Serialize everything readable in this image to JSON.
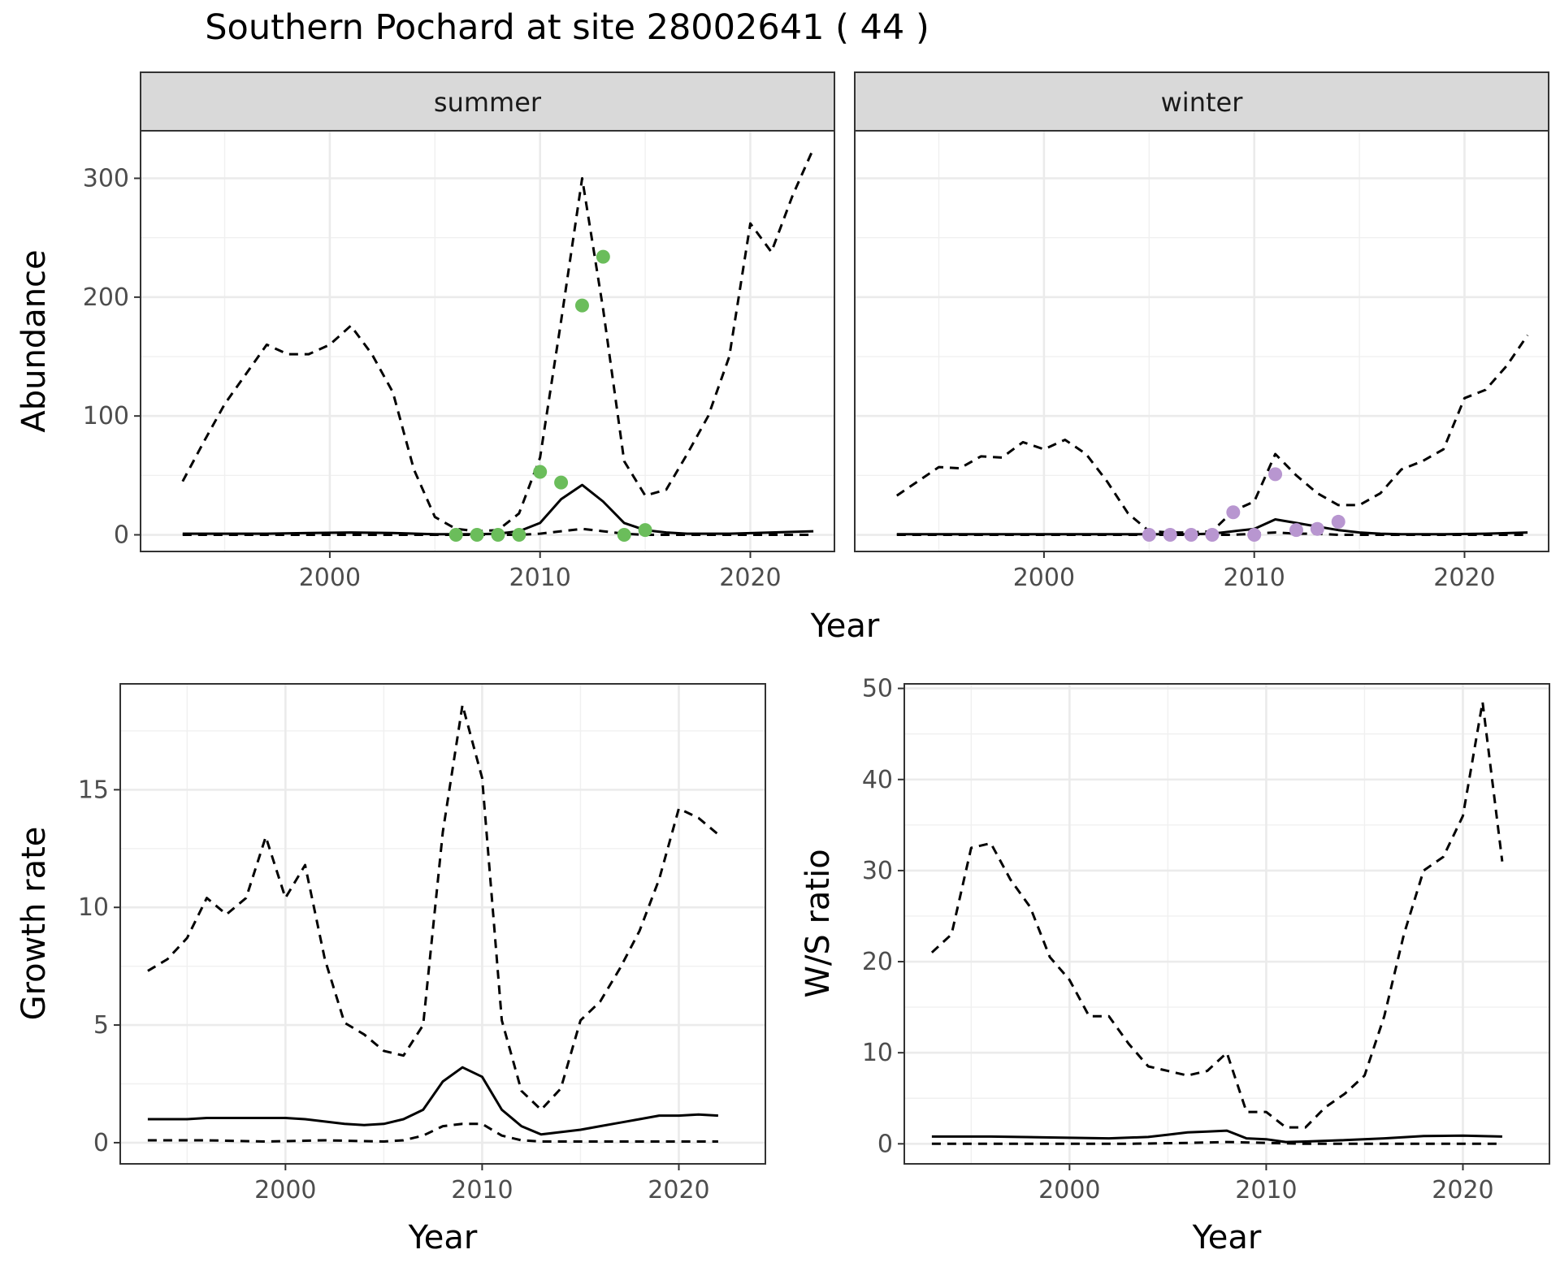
{
  "chart_data": [
    {
      "type": "line",
      "title": "Southern Pochard at site 28002641 ( 44 )",
      "xlabel": "Year",
      "ylabel": "Abundance",
      "ylim": [
        -14,
        340
      ],
      "xlim": [
        1991,
        2024
      ],
      "xticks": [
        2000,
        2010,
        2020
      ],
      "yticks": [
        0,
        100,
        200,
        300
      ],
      "grid": true,
      "facets": [
        {
          "strip": "summer",
          "point_color": "#6bbd5b",
          "series": [
            {
              "style": "dashed",
              "x": [
                1993,
                1994,
                1995,
                1996,
                1997,
                1998,
                1999,
                2000,
                2001,
                2002,
                2003,
                2004,
                2005,
                2006,
                2007,
                2008,
                2009,
                2010,
                2011,
                2012,
                2013,
                2014,
                2015,
                2016,
                2017,
                2018,
                2019,
                2020,
                2021,
                2022,
                2023
              ],
              "values": [
                45,
                78,
                110,
                135,
                160,
                152,
                152,
                160,
                176,
                152,
                120,
                55,
                15,
                5,
                3,
                4,
                18,
                65,
                180,
                300,
                190,
                62,
                33,
                38,
                68,
                100,
                150,
                262,
                238,
                285,
                325
              ]
            },
            {
              "style": "solid",
              "x": [
                1993,
                1995,
                1997,
                1999,
                2001,
                2003,
                2005,
                2007,
                2008,
                2009,
                2010,
                2011,
                2012,
                2013,
                2014,
                2015,
                2016,
                2017,
                2019,
                2021,
                2023
              ],
              "values": [
                1,
                1,
                1,
                1.5,
                2,
                1.5,
                0.5,
                0.5,
                1,
                3,
                10,
                30,
                42,
                28,
                10,
                4,
                2,
                1,
                1,
                2,
                3
              ]
            },
            {
              "style": "dashed",
              "x": [
                1993,
                1995,
                1997,
                1999,
                2001,
                2003,
                2005,
                2007,
                2009,
                2010,
                2011,
                2012,
                2013,
                2014,
                2015,
                2017,
                2019,
                2021,
                2023
              ],
              "values": [
                0,
                0,
                0,
                0,
                0,
                0,
                0,
                0,
                0,
                1,
                3,
                5,
                3,
                1,
                0,
                0,
                0,
                0,
                0
              ]
            },
            {
              "style": "points",
              "x": [
                2006,
                2007,
                2008,
                2009,
                2010,
                2011,
                2012,
                2013,
                2014,
                2015
              ],
              "values": [
                0,
                0,
                0,
                0,
                53,
                44,
                193,
                234,
                0,
                4
              ]
            }
          ]
        },
        {
          "strip": "winter",
          "point_color": "#b896d0",
          "series": [
            {
              "style": "dashed",
              "x": [
                1993,
                1994,
                1995,
                1996,
                1997,
                1998,
                1999,
                2000,
                2001,
                2002,
                2003,
                2004,
                2005,
                2006,
                2007,
                2008,
                2009,
                2010,
                2011,
                2012,
                2013,
                2014,
                2015,
                2016,
                2017,
                2018,
                2019,
                2020,
                2021,
                2022,
                2023
              ],
              "values": [
                33,
                45,
                57,
                56,
                66,
                65,
                78,
                72,
                80,
                68,
                45,
                18,
                3,
                2,
                2,
                3,
                20,
                28,
                68,
                50,
                35,
                25,
                25,
                35,
                55,
                62,
                72,
                115,
                122,
                142,
                168
              ]
            },
            {
              "style": "solid",
              "x": [
                1993,
                1995,
                1997,
                1999,
                2001,
                2003,
                2005,
                2007,
                2008,
                2009,
                2010,
                2011,
                2012,
                2013,
                2014,
                2015,
                2016,
                2017,
                2019,
                2021,
                2023
              ],
              "values": [
                0.5,
                0.5,
                0.5,
                0.5,
                0.5,
                0.5,
                0.5,
                0.5,
                1,
                3,
                5,
                13,
                10,
                7,
                4,
                2,
                1,
                0.5,
                0.5,
                1,
                2
              ]
            },
            {
              "style": "dashed",
              "x": [
                1993,
                1997,
                2001,
                2005,
                2009,
                2010,
                2011,
                2012,
                2013,
                2014,
                2015,
                2019,
                2023
              ],
              "values": [
                0,
                0,
                0,
                0,
                0,
                1,
                2,
                1,
                1,
                0,
                0,
                0,
                0
              ]
            },
            {
              "style": "points",
              "x": [
                2005,
                2006,
                2007,
                2008,
                2009,
                2010,
                2011,
                2012,
                2013,
                2014
              ],
              "values": [
                0,
                0,
                0,
                0,
                19,
                0,
                51,
                4,
                5,
                11
              ]
            }
          ]
        }
      ]
    },
    {
      "type": "line",
      "xlabel": "Year",
      "ylabel": "Growth rate",
      "ylim": [
        -0.9,
        19.5
      ],
      "xlim": [
        1991.6,
        2024.4
      ],
      "xticks": [
        2000,
        2010,
        2020
      ],
      "yticks": [
        0,
        5,
        10,
        15
      ],
      "grid": true,
      "series": [
        {
          "style": "dashed",
          "x": [
            1993,
            1994,
            1995,
            1996,
            1997,
            1998,
            1999,
            2000,
            2001,
            2002,
            2003,
            2004,
            2005,
            2006,
            2007,
            2008,
            2009,
            2010,
            2011,
            2012,
            2013,
            2014,
            2015,
            2016,
            2017,
            2018,
            2019,
            2020,
            2021,
            2022
          ],
          "values": [
            7.3,
            7.8,
            8.7,
            10.4,
            9.7,
            10.4,
            13.0,
            10.4,
            11.8,
            7.8,
            5.1,
            4.6,
            3.9,
            3.7,
            5.0,
            13.2,
            18.6,
            15.5,
            5.2,
            2.2,
            1.4,
            2.3,
            5.2,
            6.0,
            7.4,
            9.0,
            11.2,
            14.2,
            13.8,
            13.1
          ]
        },
        {
          "style": "solid",
          "x": [
            1993,
            1994,
            1995,
            1996,
            1997,
            1998,
            1999,
            2000,
            2001,
            2002,
            2003,
            2004,
            2005,
            2006,
            2007,
            2008,
            2009,
            2010,
            2011,
            2012,
            2013,
            2014,
            2015,
            2016,
            2017,
            2018,
            2019,
            2020,
            2021,
            2022
          ],
          "values": [
            1.0,
            1.0,
            1.0,
            1.05,
            1.05,
            1.05,
            1.05,
            1.05,
            1.0,
            0.9,
            0.8,
            0.75,
            0.8,
            1.0,
            1.4,
            2.6,
            3.2,
            2.8,
            1.4,
            0.7,
            0.35,
            0.45,
            0.55,
            0.7,
            0.85,
            1.0,
            1.15,
            1.15,
            1.2,
            1.15
          ]
        },
        {
          "style": "dashed",
          "x": [
            1993,
            1996,
            1999,
            2002,
            2005,
            2006,
            2007,
            2008,
            2009,
            2010,
            2011,
            2012,
            2013,
            2016,
            2019,
            2022
          ],
          "values": [
            0.1,
            0.1,
            0.05,
            0.1,
            0.05,
            0.1,
            0.3,
            0.7,
            0.8,
            0.8,
            0.3,
            0.1,
            0.05,
            0.05,
            0.05,
            0.05
          ]
        }
      ]
    },
    {
      "type": "line",
      "xlabel": "Year",
      "ylabel": "W/S ratio",
      "ylim": [
        -2.2,
        50.5
      ],
      "xlim": [
        1991.6,
        2024.4
      ],
      "xticks": [
        2000,
        2010,
        2020
      ],
      "yticks": [
        0,
        10,
        20,
        30,
        40,
        50
      ],
      "grid": true,
      "series": [
        {
          "style": "dashed",
          "x": [
            1993,
            1994,
            1995,
            1996,
            1997,
            1998,
            1999,
            2000,
            2001,
            2002,
            2003,
            2004,
            2005,
            2006,
            2007,
            2008,
            2009,
            2010,
            2011,
            2012,
            2013,
            2014,
            2015,
            2016,
            2017,
            2018,
            2019,
            2020,
            2021,
            2022
          ],
          "values": [
            21,
            23,
            32.5,
            33,
            29,
            26,
            20.5,
            18,
            14,
            14,
            11,
            8.5,
            8,
            7.5,
            8,
            10,
            3.5,
            3.5,
            1.8,
            1.8,
            4,
            5.5,
            7.5,
            14,
            23,
            30,
            31.5,
            36,
            48.5,
            31
          ]
        },
        {
          "style": "solid",
          "x": [
            1993,
            1996,
            1999,
            2002,
            2004,
            2005,
            2006,
            2007,
            2008,
            2009,
            2010,
            2011,
            2012,
            2014,
            2016,
            2018,
            2020,
            2022
          ],
          "values": [
            0.8,
            0.8,
            0.7,
            0.6,
            0.75,
            1.0,
            1.25,
            1.35,
            1.45,
            0.6,
            0.5,
            0.2,
            0.25,
            0.4,
            0.6,
            0.85,
            0.9,
            0.8
          ]
        },
        {
          "style": "dashed",
          "x": [
            1993,
            1998,
            2003,
            2006,
            2008,
            2010,
            2012,
            2016,
            2022
          ],
          "values": [
            0,
            0,
            0,
            0.1,
            0.2,
            0.1,
            0,
            0,
            0
          ]
        }
      ]
    }
  ]
}
